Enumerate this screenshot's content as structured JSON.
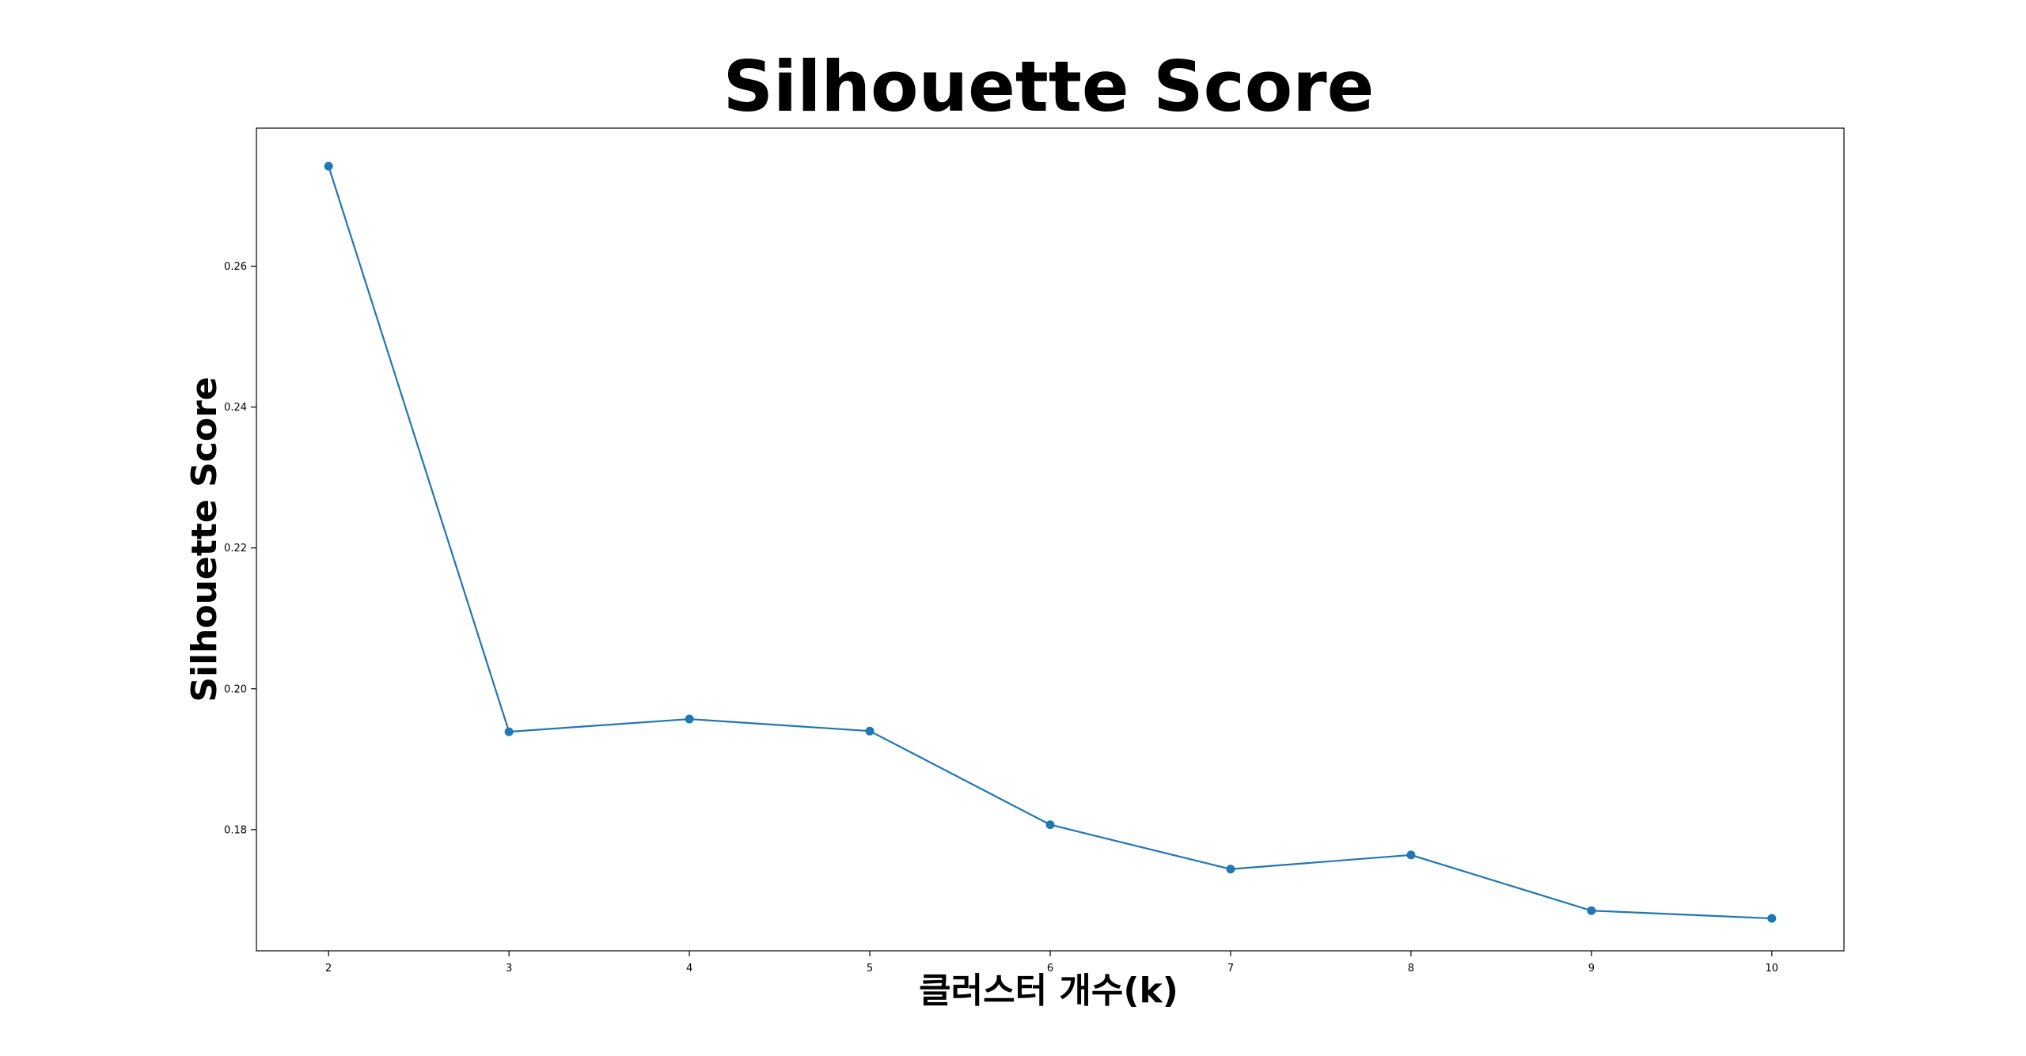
{
  "chart_data": {
    "type": "line",
    "title": "Silhouette Score",
    "xlabel": "클러스터 개수(k)",
    "ylabel": "Silhouette Score",
    "x": [
      2,
      3,
      4,
      5,
      6,
      7,
      8,
      9,
      10
    ],
    "series": [
      {
        "values": [
          0.2742,
          0.1939,
          0.1957,
          0.194,
          0.1807,
          0.1744,
          0.1764,
          0.1685,
          0.1674
        ],
        "color": "#1f77b4",
        "marker": "circle"
      }
    ],
    "xticks": [
      "2",
      "3",
      "4",
      "5",
      "6",
      "7",
      "8",
      "9",
      "10"
    ],
    "yticks": [
      "0.18",
      "0.20",
      "0.22",
      "0.24",
      "0.26"
    ],
    "ytick_values": [
      0.18,
      0.2,
      0.22,
      0.24,
      0.26
    ],
    "xlim": [
      1.6,
      10.4
    ],
    "ylim": [
      0.1628,
      0.2796
    ],
    "grid": false,
    "legend": "none"
  }
}
